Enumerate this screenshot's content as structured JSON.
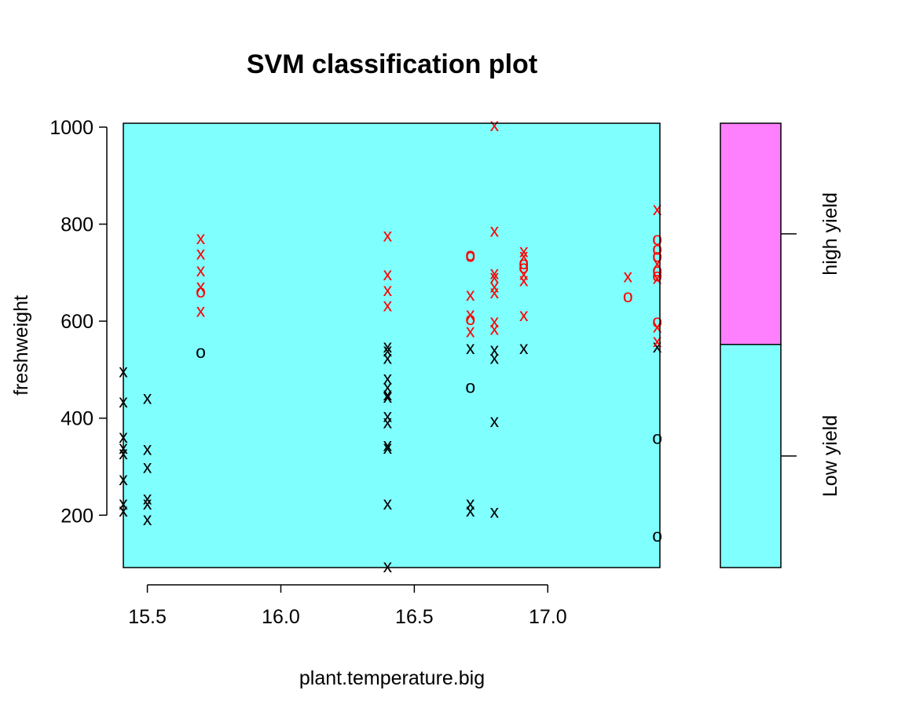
{
  "chart_data": {
    "type": "scatter",
    "title": "SVM classification plot",
    "xlabel": "plant.temperature.big",
    "ylabel": "freshweight",
    "xlim": [
      15.41,
      17.42
    ],
    "ylim": [
      92,
      1008
    ],
    "x_ticks": [
      "15.5",
      "16.0",
      "16.5",
      "17.0"
    ],
    "y_ticks": [
      "200",
      "400",
      "600",
      "800",
      "1000"
    ],
    "region_color": "#80FFFF",
    "legend": {
      "placement": "right",
      "levels": [
        {
          "label": "Low yield",
          "color": "#80FFFF",
          "from": 92,
          "to": 552
        },
        {
          "label": "high yield",
          "color": "#FF80FF",
          "from": 552,
          "to": 1008
        }
      ]
    },
    "marker_colors": {
      "low": "#000000",
      "high": "#FF0000"
    },
    "series": [
      {
        "name": "Low yield",
        "points": [
          {
            "x": 15.41,
            "y": 497,
            "m": "x"
          },
          {
            "x": 15.41,
            "y": 435,
            "m": "x"
          },
          {
            "x": 15.41,
            "y": 362,
            "m": "x"
          },
          {
            "x": 15.41,
            "y": 340,
            "m": "x"
          },
          {
            "x": 15.41,
            "y": 328,
            "m": "x"
          },
          {
            "x": 15.41,
            "y": 275,
            "m": "x"
          },
          {
            "x": 15.41,
            "y": 225,
            "m": "x"
          },
          {
            "x": 15.41,
            "y": 210,
            "m": "x"
          },
          {
            "x": 15.5,
            "y": 442,
            "m": "x"
          },
          {
            "x": 15.5,
            "y": 337,
            "m": "x"
          },
          {
            "x": 15.5,
            "y": 300,
            "m": "x"
          },
          {
            "x": 15.5,
            "y": 235,
            "m": "x"
          },
          {
            "x": 15.5,
            "y": 225,
            "m": "x"
          },
          {
            "x": 15.5,
            "y": 192,
            "m": "x"
          },
          {
            "x": 15.7,
            "y": 537,
            "m": "o"
          },
          {
            "x": 16.4,
            "y": 548,
            "m": "x"
          },
          {
            "x": 16.4,
            "y": 540,
            "m": "x"
          },
          {
            "x": 16.4,
            "y": 525,
            "m": "x"
          },
          {
            "x": 16.4,
            "y": 483,
            "m": "x"
          },
          {
            "x": 16.4,
            "y": 465,
            "m": "x"
          },
          {
            "x": 16.4,
            "y": 450,
            "m": "x"
          },
          {
            "x": 16.4,
            "y": 445,
            "m": "x"
          },
          {
            "x": 16.4,
            "y": 405,
            "m": "x"
          },
          {
            "x": 16.4,
            "y": 392,
            "m": "x"
          },
          {
            "x": 16.4,
            "y": 345,
            "m": "x"
          },
          {
            "x": 16.4,
            "y": 340,
            "m": "x"
          },
          {
            "x": 16.4,
            "y": 225,
            "m": "x"
          },
          {
            "x": 16.4,
            "y": 95,
            "m": "x"
          },
          {
            "x": 16.71,
            "y": 545,
            "m": "x"
          },
          {
            "x": 16.71,
            "y": 465,
            "m": "o"
          },
          {
            "x": 16.71,
            "y": 225,
            "m": "x"
          },
          {
            "x": 16.71,
            "y": 210,
            "m": "x"
          },
          {
            "x": 16.8,
            "y": 542,
            "m": "x"
          },
          {
            "x": 16.8,
            "y": 525,
            "m": "x"
          },
          {
            "x": 16.8,
            "y": 395,
            "m": "x"
          },
          {
            "x": 16.8,
            "y": 208,
            "m": "x"
          },
          {
            "x": 16.91,
            "y": 545,
            "m": "x"
          },
          {
            "x": 17.41,
            "y": 548,
            "m": "x"
          },
          {
            "x": 17.41,
            "y": 360,
            "m": "o"
          },
          {
            "x": 17.41,
            "y": 158,
            "m": "o"
          }
        ]
      },
      {
        "name": "high yield",
        "points": [
          {
            "x": 15.7,
            "y": 772,
            "m": "x"
          },
          {
            "x": 15.7,
            "y": 740,
            "m": "x"
          },
          {
            "x": 15.7,
            "y": 705,
            "m": "x"
          },
          {
            "x": 15.7,
            "y": 672,
            "m": "x"
          },
          {
            "x": 15.7,
            "y": 662,
            "m": "o"
          },
          {
            "x": 15.7,
            "y": 622,
            "m": "x"
          },
          {
            "x": 16.4,
            "y": 777,
            "m": "x"
          },
          {
            "x": 16.4,
            "y": 697,
            "m": "x"
          },
          {
            "x": 16.4,
            "y": 665,
            "m": "x"
          },
          {
            "x": 16.4,
            "y": 633,
            "m": "x"
          },
          {
            "x": 16.71,
            "y": 738,
            "m": "o"
          },
          {
            "x": 16.71,
            "y": 735,
            "m": "o"
          },
          {
            "x": 16.71,
            "y": 655,
            "m": "x"
          },
          {
            "x": 16.71,
            "y": 615,
            "m": "x"
          },
          {
            "x": 16.71,
            "y": 605,
            "m": "o"
          },
          {
            "x": 16.71,
            "y": 580,
            "m": "x"
          },
          {
            "x": 16.8,
            "y": 1005,
            "m": "x"
          },
          {
            "x": 16.8,
            "y": 787,
            "m": "x"
          },
          {
            "x": 16.8,
            "y": 700,
            "m": "x"
          },
          {
            "x": 16.8,
            "y": 692,
            "m": "x"
          },
          {
            "x": 16.8,
            "y": 672,
            "m": "x"
          },
          {
            "x": 16.8,
            "y": 660,
            "m": "x"
          },
          {
            "x": 16.8,
            "y": 600,
            "m": "x"
          },
          {
            "x": 16.8,
            "y": 585,
            "m": "x"
          },
          {
            "x": 16.91,
            "y": 745,
            "m": "x"
          },
          {
            "x": 16.91,
            "y": 735,
            "m": "x"
          },
          {
            "x": 16.91,
            "y": 720,
            "m": "o"
          },
          {
            "x": 16.91,
            "y": 712,
            "m": "o"
          },
          {
            "x": 16.91,
            "y": 698,
            "m": "x"
          },
          {
            "x": 16.91,
            "y": 685,
            "m": "x"
          },
          {
            "x": 16.91,
            "y": 613,
            "m": "x"
          },
          {
            "x": 17.3,
            "y": 693,
            "m": "x"
          },
          {
            "x": 17.3,
            "y": 652,
            "m": "o"
          },
          {
            "x": 17.41,
            "y": 832,
            "m": "x"
          },
          {
            "x": 17.41,
            "y": 770,
            "m": "o"
          },
          {
            "x": 17.41,
            "y": 750,
            "m": "o"
          },
          {
            "x": 17.41,
            "y": 735,
            "m": "o"
          },
          {
            "x": 17.41,
            "y": 720,
            "m": "x"
          },
          {
            "x": 17.41,
            "y": 705,
            "m": "o"
          },
          {
            "x": 17.41,
            "y": 695,
            "m": "o"
          },
          {
            "x": 17.41,
            "y": 690,
            "m": "x"
          },
          {
            "x": 17.41,
            "y": 600,
            "m": "o"
          },
          {
            "x": 17.41,
            "y": 590,
            "m": "x"
          },
          {
            "x": 17.41,
            "y": 560,
            "m": "x"
          }
        ]
      }
    ]
  }
}
